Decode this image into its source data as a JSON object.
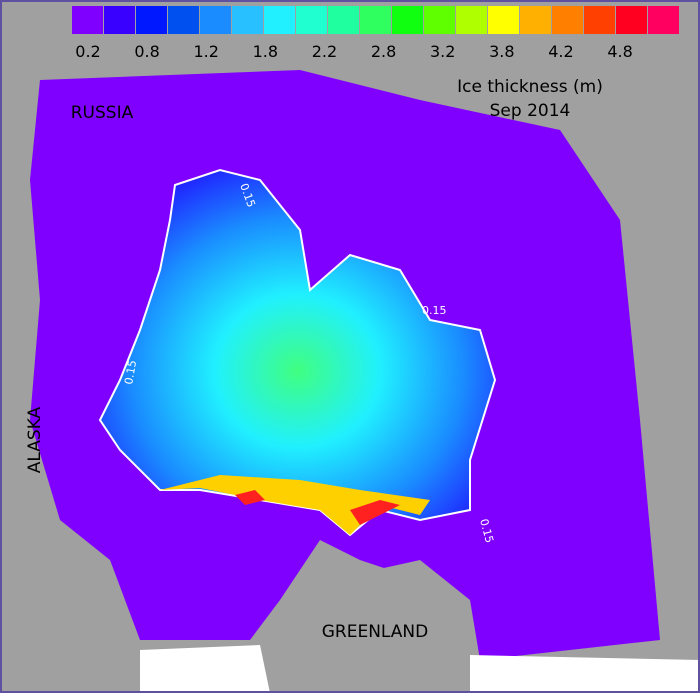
{
  "title": "Ice thickness (m)",
  "date": "Sep 2014",
  "colorbar": {
    "colors": [
      "#8000ff",
      "#3a00ff",
      "#0018ff",
      "#0050f0",
      "#1a8cff",
      "#28c0ff",
      "#20f0ff",
      "#20ffd0",
      "#20ffa0",
      "#30ff60",
      "#10ff10",
      "#60ff00",
      "#b0ff00",
      "#ffff00",
      "#ffb000",
      "#ff8000",
      "#ff4000",
      "#ff0020",
      "#ff0060"
    ],
    "labels": [
      "0.2",
      "0.8",
      "1.2",
      "1.8",
      "2.2",
      "2.8",
      "3.2",
      "3.8",
      "4.2",
      "4.8"
    ]
  },
  "regions": [
    "RUSSIA",
    "ALASKA",
    "GREENLAND"
  ],
  "contour_labels": [
    "0.15",
    "0.15",
    "0.15",
    "0.15"
  ]
}
